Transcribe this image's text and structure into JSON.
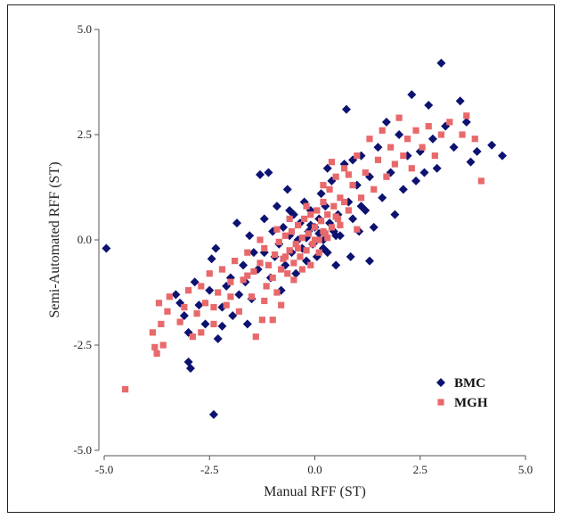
{
  "chart_data": {
    "type": "scatter",
    "title": "",
    "xlabel": "Manual RFF (ST)",
    "ylabel": "Semi-Automated RFF (ST)",
    "xlim": [
      -5.0,
      5.0
    ],
    "ylim": [
      -5.0,
      5.0
    ],
    "xticks": [
      "-5.0",
      "-2.5",
      "0.0",
      "2.5",
      "5.0"
    ],
    "yticks": [
      "5.0",
      "2.5",
      "0.0",
      "-2.5",
      "-5.0"
    ],
    "grid": false,
    "legend_position": "bottom-right",
    "series": [
      {
        "name": "BMC",
        "marker": "diamond",
        "color": "#0c1270",
        "points": [
          [
            -4.95,
            -0.2
          ],
          [
            -3.0,
            -2.9
          ],
          [
            -2.95,
            -3.05
          ],
          [
            -2.4,
            -4.15
          ],
          [
            -3.2,
            -1.5
          ],
          [
            -3.1,
            -1.8
          ],
          [
            -3.0,
            -2.2
          ],
          [
            -3.3,
            -1.3
          ],
          [
            -2.85,
            -1.0
          ],
          [
            -2.75,
            -1.55
          ],
          [
            -2.6,
            -2.0
          ],
          [
            -2.5,
            -1.2
          ],
          [
            -2.45,
            -0.45
          ],
          [
            -2.35,
            -0.2
          ],
          [
            -2.3,
            -2.35
          ],
          [
            -2.2,
            -1.6
          ],
          [
            -2.1,
            -1.1
          ],
          [
            -2.0,
            -0.9
          ],
          [
            -1.95,
            -1.8
          ],
          [
            -1.85,
            0.4
          ],
          [
            -1.8,
            -1.3
          ],
          [
            -1.7,
            -0.6
          ],
          [
            -1.65,
            -1.0
          ],
          [
            -1.55,
            0.1
          ],
          [
            -1.5,
            -1.4
          ],
          [
            -1.45,
            -0.3
          ],
          [
            -1.35,
            -0.7
          ],
          [
            -1.3,
            1.55
          ],
          [
            -1.2,
            0.5
          ],
          [
            -1.1,
            1.6
          ],
          [
            -1.05,
            -0.9
          ],
          [
            -1.0,
            0.2
          ],
          [
            -0.95,
            -0.4
          ],
          [
            -0.9,
            0.8
          ],
          [
            -0.85,
            -0.1
          ],
          [
            -0.8,
            -1.2
          ],
          [
            -0.75,
            0.3
          ],
          [
            -0.7,
            -0.6
          ],
          [
            -0.65,
            1.2
          ],
          [
            -0.6,
            0.1
          ],
          [
            -0.55,
            -0.3
          ],
          [
            -0.5,
            0.6
          ],
          [
            -0.45,
            -0.8
          ],
          [
            -0.4,
            0.0
          ],
          [
            -0.35,
            0.4
          ],
          [
            -0.3,
            -0.2
          ],
          [
            -0.25,
            0.9
          ],
          [
            -0.2,
            -0.5
          ],
          [
            -0.15,
            0.2
          ],
          [
            -0.1,
            0.7
          ],
          [
            -0.05,
            -0.1
          ],
          [
            0.0,
            0.3
          ],
          [
            0.05,
            -0.4
          ],
          [
            0.1,
            0.5
          ],
          [
            0.15,
            1.1
          ],
          [
            0.2,
            0.0
          ],
          [
            0.25,
            0.8
          ],
          [
            0.3,
            -0.3
          ],
          [
            0.35,
            0.4
          ],
          [
            0.4,
            1.4
          ],
          [
            0.45,
            0.2
          ],
          [
            0.5,
            -0.6
          ],
          [
            0.55,
            0.6
          ],
          [
            0.6,
            0.1
          ],
          [
            0.7,
            1.8
          ],
          [
            0.75,
            3.1
          ],
          [
            0.8,
            0.9
          ],
          [
            0.85,
            -0.4
          ],
          [
            0.9,
            0.5
          ],
          [
            1.0,
            1.3
          ],
          [
            1.05,
            0.2
          ],
          [
            1.1,
            2.0
          ],
          [
            1.2,
            0.7
          ],
          [
            1.3,
            1.5
          ],
          [
            1.4,
            0.3
          ],
          [
            1.5,
            2.2
          ],
          [
            1.6,
            1.0
          ],
          [
            1.7,
            2.8
          ],
          [
            1.8,
            1.6
          ],
          [
            1.9,
            0.6
          ],
          [
            2.0,
            2.5
          ],
          [
            2.1,
            1.2
          ],
          [
            2.2,
            2.0
          ],
          [
            2.3,
            3.45
          ],
          [
            2.4,
            1.4
          ],
          [
            2.5,
            2.1
          ],
          [
            2.6,
            1.6
          ],
          [
            2.7,
            3.2
          ],
          [
            2.8,
            2.4
          ],
          [
            2.9,
            1.7
          ],
          [
            3.0,
            4.2
          ],
          [
            3.1,
            2.7
          ],
          [
            3.3,
            2.2
          ],
          [
            3.45,
            3.3
          ],
          [
            3.6,
            2.8
          ],
          [
            3.7,
            1.85
          ],
          [
            3.85,
            2.1
          ],
          [
            4.2,
            2.25
          ],
          [
            4.45,
            2.0
          ],
          [
            1.3,
            -0.5
          ],
          [
            1.1,
            0.8
          ],
          [
            0.9,
            1.9
          ],
          [
            -0.6,
            0.7
          ],
          [
            -1.6,
            -2.0
          ],
          [
            -2.2,
            -2.05
          ],
          [
            -1.2,
            -0.3
          ],
          [
            0.3,
            1.7
          ],
          [
            0.5,
            0.1
          ],
          [
            0.2,
            -0.2
          ],
          [
            -0.1,
            0.35
          ],
          [
            0.1,
            0.15
          ],
          [
            -0.2,
            0.05
          ],
          [
            0.0,
            -0.05
          ]
        ]
      },
      {
        "name": "MGH",
        "marker": "square",
        "color": "#e8696b",
        "points": [
          [
            -4.5,
            -3.55
          ],
          [
            -3.8,
            -2.55
          ],
          [
            -3.75,
            -2.7
          ],
          [
            -3.85,
            -2.2
          ],
          [
            -3.65,
            -2.0
          ],
          [
            -3.6,
            -2.5
          ],
          [
            -3.7,
            -1.5
          ],
          [
            -3.5,
            -1.7
          ],
          [
            -3.45,
            -1.35
          ],
          [
            -3.2,
            -1.95
          ],
          [
            -3.1,
            -1.6
          ],
          [
            -3.0,
            -1.2
          ],
          [
            -2.9,
            -2.3
          ],
          [
            -2.8,
            -1.75
          ],
          [
            -2.7,
            -1.1
          ],
          [
            -2.6,
            -1.5
          ],
          [
            -2.5,
            -0.8
          ],
          [
            -2.4,
            -2.0
          ],
          [
            -2.3,
            -1.25
          ],
          [
            -2.2,
            -0.7
          ],
          [
            -2.1,
            -1.55
          ],
          [
            -2.0,
            -1.0
          ],
          [
            -1.9,
            -0.5
          ],
          [
            -1.8,
            -1.7
          ],
          [
            -1.7,
            -0.95
          ],
          [
            -1.6,
            -0.3
          ],
          [
            -1.5,
            -1.35
          ],
          [
            -1.45,
            -0.75
          ],
          [
            -1.4,
            -2.3
          ],
          [
            -1.3,
            -0.55
          ],
          [
            -1.25,
            -1.9
          ],
          [
            -1.2,
            -0.2
          ],
          [
            -1.15,
            -1.1
          ],
          [
            -1.1,
            -0.6
          ],
          [
            -1.0,
            -0.9
          ],
          [
            -0.95,
            -0.35
          ],
          [
            -0.9,
            -1.25
          ],
          [
            -0.85,
            -0.05
          ],
          [
            -0.8,
            -0.7
          ],
          [
            -0.75,
            -0.45
          ],
          [
            -0.7,
            0.1
          ],
          [
            -0.65,
            -0.8
          ],
          [
            -0.6,
            -0.25
          ],
          [
            -0.55,
            0.2
          ],
          [
            -0.5,
            -0.55
          ],
          [
            -0.45,
            -0.1
          ],
          [
            -0.4,
            0.35
          ],
          [
            -0.35,
            -0.4
          ],
          [
            -0.3,
            0.05
          ],
          [
            -0.25,
            0.5
          ],
          [
            -0.2,
            -0.25
          ],
          [
            -0.15,
            0.15
          ],
          [
            -0.1,
            0.6
          ],
          [
            -0.05,
            -0.1
          ],
          [
            0.0,
            0.3
          ],
          [
            0.05,
            0.7
          ],
          [
            0.1,
            0.0
          ],
          [
            0.15,
            0.45
          ],
          [
            0.2,
            0.9
          ],
          [
            0.25,
            0.15
          ],
          [
            0.3,
            0.6
          ],
          [
            0.35,
            1.2
          ],
          [
            0.4,
            0.3
          ],
          [
            0.45,
            0.8
          ],
          [
            0.5,
            1.5
          ],
          [
            0.55,
            0.5
          ],
          [
            0.6,
            1.0
          ],
          [
            0.7,
            1.7
          ],
          [
            0.8,
            0.7
          ],
          [
            0.9,
            1.3
          ],
          [
            1.0,
            2.0
          ],
          [
            1.1,
            1.0
          ],
          [
            1.2,
            1.6
          ],
          [
            1.3,
            2.4
          ],
          [
            1.4,
            1.2
          ],
          [
            1.5,
            1.9
          ],
          [
            1.6,
            2.6
          ],
          [
            1.7,
            1.5
          ],
          [
            1.8,
            2.2
          ],
          [
            1.9,
            1.8
          ],
          [
            2.0,
            2.9
          ],
          [
            2.1,
            2.0
          ],
          [
            2.2,
            2.4
          ],
          [
            2.3,
            1.7
          ],
          [
            2.4,
            2.6
          ],
          [
            2.55,
            2.2
          ],
          [
            2.7,
            2.7
          ],
          [
            2.85,
            2.0
          ],
          [
            3.0,
            2.5
          ],
          [
            3.2,
            2.8
          ],
          [
            3.5,
            2.5
          ],
          [
            3.6,
            2.95
          ],
          [
            3.8,
            2.4
          ],
          [
            3.95,
            1.4
          ],
          [
            -1.0,
            -1.9
          ],
          [
            -0.8,
            -1.55
          ],
          [
            -1.2,
            -1.45
          ],
          [
            -0.5,
            -0.95
          ],
          [
            -0.3,
            -0.7
          ],
          [
            -0.2,
            0.8
          ],
          [
            0.1,
            -0.3
          ],
          [
            0.3,
            0.05
          ],
          [
            0.6,
            0.35
          ],
          [
            0.8,
            1.55
          ],
          [
            1.0,
            0.25
          ],
          [
            0.4,
            1.85
          ],
          [
            0.2,
            1.3
          ],
          [
            -0.6,
            0.5
          ],
          [
            -0.9,
            0.25
          ],
          [
            -1.3,
            0.0
          ],
          [
            -1.6,
            -0.85
          ],
          [
            -2.0,
            -1.35
          ],
          [
            -2.4,
            -1.6
          ],
          [
            -2.7,
            -2.2
          ],
          [
            -0.1,
            -0.6
          ],
          [
            0.0,
            0.0
          ],
          [
            0.2,
            0.2
          ],
          [
            -0.4,
            -0.2
          ],
          [
            0.5,
            0.55
          ],
          [
            -0.7,
            -0.4
          ],
          [
            0.7,
            0.9
          ]
        ]
      }
    ]
  }
}
